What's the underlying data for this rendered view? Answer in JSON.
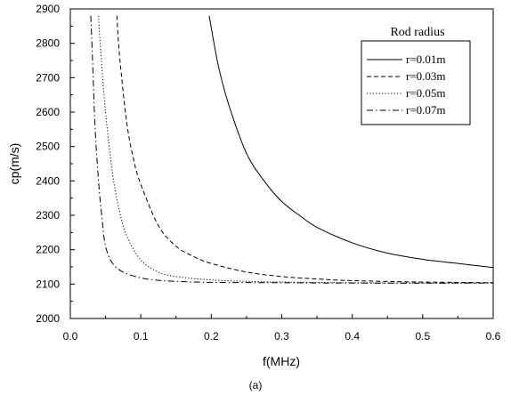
{
  "chart_data": {
    "type": "line",
    "xlabel": "f(MHz)",
    "ylabel": "cp(m/s)",
    "caption": "(a)",
    "xlim": [
      0.0,
      0.6
    ],
    "ylim": [
      2000,
      2900
    ],
    "xticks": [
      "0.0",
      "0.1",
      "0.2",
      "0.3",
      "0.4",
      "0.5",
      "0.6"
    ],
    "yticks": [
      "2000",
      "2100",
      "2200",
      "2300",
      "2400",
      "2500",
      "2600",
      "2700",
      "2800",
      "2900"
    ],
    "grid": false,
    "legend": {
      "title": "Rod radius",
      "position": "top-right"
    },
    "series": [
      {
        "name": "r=0.01m",
        "dash": "solid",
        "x": [
          0.197,
          0.21,
          0.225,
          0.25,
          0.275,
          0.3,
          0.325,
          0.35,
          0.4,
          0.45,
          0.5,
          0.55,
          0.6
        ],
        "y": [
          2880,
          2735,
          2620,
          2480,
          2400,
          2340,
          2300,
          2265,
          2220,
          2190,
          2172,
          2160,
          2148
        ]
      },
      {
        "name": "r=0.03m",
        "dash": "dashed",
        "x": [
          0.066,
          0.07,
          0.08,
          0.09,
          0.1,
          0.125,
          0.15,
          0.175,
          0.2,
          0.25,
          0.3,
          0.35,
          0.4,
          0.5,
          0.6
        ],
        "y": [
          2880,
          2760,
          2570,
          2460,
          2390,
          2270,
          2210,
          2180,
          2160,
          2135,
          2122,
          2115,
          2110,
          2106,
          2104
        ]
      },
      {
        "name": "r=0.05m",
        "dash": "dotted",
        "x": [
          0.04,
          0.043,
          0.05,
          0.06,
          0.07,
          0.08,
          0.1,
          0.125,
          0.15,
          0.2,
          0.25,
          0.3,
          0.4,
          0.5,
          0.6
        ],
        "y": [
          2880,
          2780,
          2600,
          2420,
          2310,
          2240,
          2170,
          2135,
          2122,
          2112,
          2108,
          2106,
          2104,
          2103,
          2103
        ]
      },
      {
        "name": "r=0.07m",
        "dash": "dashdot",
        "x": [
          0.029,
          0.031,
          0.035,
          0.04,
          0.045,
          0.05,
          0.06,
          0.075,
          0.1,
          0.125,
          0.15,
          0.2,
          0.3,
          0.4,
          0.6
        ],
        "y": [
          2880,
          2780,
          2560,
          2400,
          2290,
          2210,
          2160,
          2135,
          2118,
          2111,
          2108,
          2105,
          2104,
          2103,
          2103
        ]
      }
    ]
  }
}
